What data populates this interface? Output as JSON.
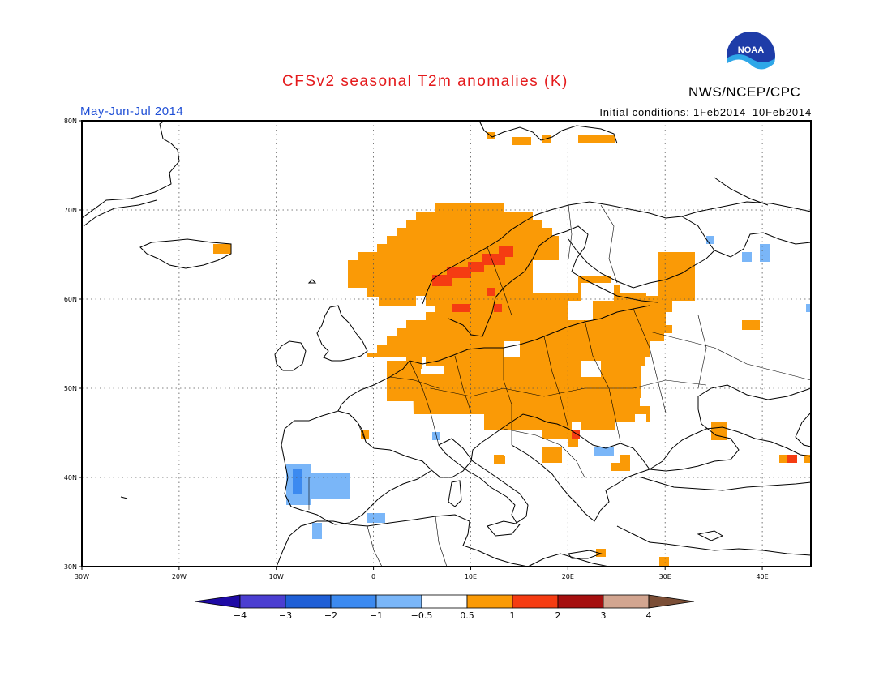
{
  "header": {
    "title": "CFSv2 seasonal T2m anomalies (K)",
    "period": "May-Jun-Jul 2014",
    "initial_conditions": "Initial conditions: 1Feb2014–10Feb2014",
    "organization": "NWS/NCEP/CPC",
    "logo_text": "NOAA"
  },
  "map": {
    "lon_range": [
      -30,
      45
    ],
    "lat_range": [
      30,
      80
    ],
    "lon_ticks": [
      "30W",
      "20W",
      "10W",
      "0",
      "10E",
      "20E",
      "30E",
      "40E"
    ],
    "lat_ticks": [
      "30N",
      "40N",
      "50N",
      "60N",
      "70N",
      "80N"
    ],
    "grid": true
  },
  "colorbar": {
    "labels": [
      "−4",
      "−3",
      "−2",
      "−1",
      "−0.5",
      "0.5",
      "1",
      "2",
      "3",
      "4"
    ],
    "colors": [
      "#1e0aa5",
      "#4b3ed1",
      "#1f5fd6",
      "#3c8af0",
      "#7ab6f8",
      "#ffffff",
      "#fa9a06",
      "#f53c12",
      "#a50f0f",
      "#d2a590",
      "#7b4e36"
    ]
  },
  "colors": {
    "warm_1": "#fa9a06",
    "warm_2": "#f53c12",
    "cool_1": "#7ab6f8",
    "cool_2": "#3c8af0"
  }
}
